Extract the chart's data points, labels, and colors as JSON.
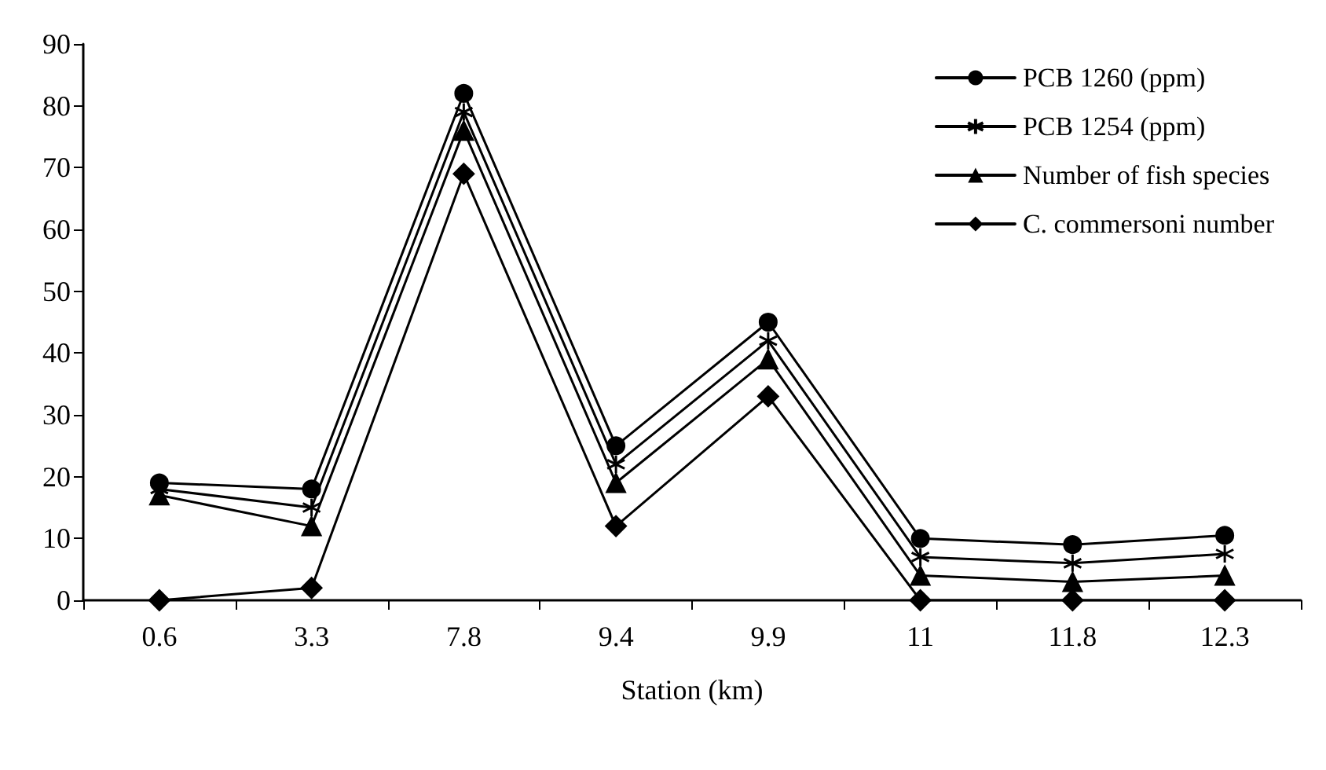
{
  "chart_data": {
    "type": "line",
    "xlabel": "Station (km)",
    "categories": [
      "0.6",
      "3.3",
      "7.8",
      "9.4",
      "9.9",
      "11",
      "11.8",
      "12.3"
    ],
    "series": [
      {
        "name": "PCB 1260 (ppm)",
        "color": "#000000",
        "marker": "circle",
        "values": [
          19,
          18,
          82,
          25,
          45,
          10,
          9,
          10.5
        ]
      },
      {
        "name": "PCB 1254 (ppm)",
        "color": "#000000",
        "marker": "cross",
        "values": [
          18,
          15,
          79,
          22,
          42,
          7,
          6,
          7.5
        ]
      },
      {
        "name": "Number of fish species",
        "color": "#000000",
        "marker": "triangle",
        "values": [
          17,
          12,
          76,
          19,
          39,
          4,
          3,
          4
        ]
      },
      {
        "name": "C. commersoni number",
        "color": "#000000",
        "marker": "diamond",
        "values": [
          0,
          2,
          69,
          12,
          33,
          0,
          0,
          0
        ]
      }
    ],
    "ylim": [
      0,
      90
    ],
    "yticks": [
      0,
      10,
      20,
      30,
      40,
      50,
      60,
      70,
      80,
      90
    ],
    "grid": false,
    "legend": "top right",
    "line_style": "solid"
  }
}
